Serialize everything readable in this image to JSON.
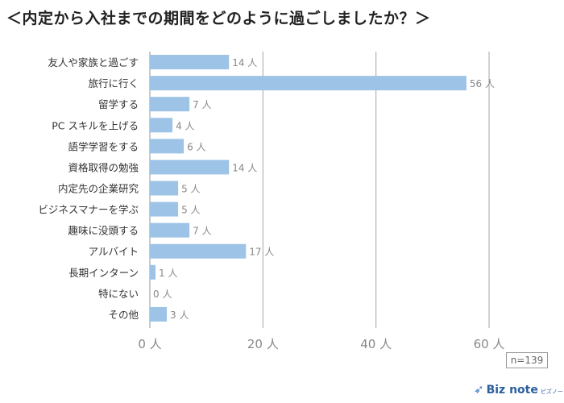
{
  "title": "＜内定から入社までの期間をどのように過ごしましたか？＞",
  "n_label": "n=139",
  "logo": {
    "icon": "bird-icon",
    "text": "Biz note",
    "sub": "ビズノート",
    "color": "#2b5f9e"
  },
  "chart_data": {
    "type": "bar",
    "orientation": "horizontal",
    "categories": [
      "友人や家族と過ごす",
      "旅行に行く",
      "留学する",
      "PC スキルを上げる",
      "語学学習をする",
      "資格取得の勉強",
      "内定先の企業研究",
      "ビジネスマナーを学ぶ",
      "趣味に没頭する",
      "アルバイト",
      "長期インターン",
      "特にない",
      "その他"
    ],
    "values": [
      14,
      56,
      7,
      4,
      6,
      14,
      5,
      5,
      7,
      17,
      1,
      0,
      3
    ],
    "value_unit": "人",
    "xlim": [
      0,
      60
    ],
    "xticks": [
      0,
      20,
      40,
      60
    ],
    "tick_labels": [
      "0 人",
      "20 人",
      "40 人",
      "60 人"
    ],
    "grid": true,
    "bar_color": "#9dc3e6",
    "grid_color": "#a6a6a6"
  }
}
